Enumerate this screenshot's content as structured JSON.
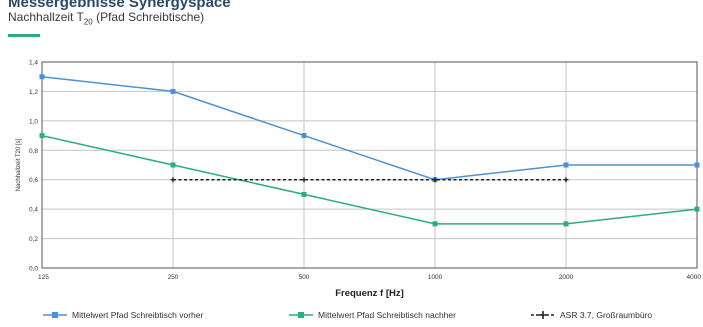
{
  "header": {
    "title": "Messergebnisse Synergyspace",
    "subtitle_main": "Nachhallzeit T",
    "subtitle_sub": "20",
    "subtitle_rest": " (Pfad Schreibtische)"
  },
  "colors": {
    "series_before": "#4e90d6",
    "series_after": "#2cac83",
    "reference": "#222222",
    "accent": "#2cac83",
    "grid": "#c4c4c4"
  },
  "chart_data": {
    "type": "line",
    "x_scale": "log",
    "categories": [
      "125",
      "250",
      "500",
      "1000",
      "2000",
      "4000"
    ],
    "x": [
      125,
      250,
      500,
      1000,
      2000,
      4000
    ],
    "xlabel": "Frequenz f [Hz]",
    "ylabel": "Nachhallzeit T20 [s]",
    "ylim": [
      0,
      1.4
    ],
    "yticks": [
      "0,0",
      "0,2",
      "0,4",
      "0,6",
      "0,8",
      "1,0",
      "1,2",
      "1,4"
    ],
    "grid": true,
    "legend_position": "bottom",
    "series": [
      {
        "name": "Mittelwert Pfad Schreibtisch vorher",
        "x": [
          125,
          250,
          500,
          1000,
          2000,
          4000
        ],
        "values": [
          1.3,
          1.2,
          0.9,
          0.6,
          0.7,
          0.7
        ]
      },
      {
        "name": "Mittelwert Pfad Schreibtisch nachher",
        "x": [
          125,
          250,
          500,
          1000,
          2000,
          4000
        ],
        "values": [
          0.9,
          0.7,
          0.5,
          0.3,
          0.3,
          0.4
        ]
      },
      {
        "name": "ASR 3.7, Großraumbüro",
        "x": [
          250,
          500,
          1000,
          2000
        ],
        "values": [
          0.6,
          0.6,
          0.6,
          0.6
        ]
      }
    ]
  }
}
